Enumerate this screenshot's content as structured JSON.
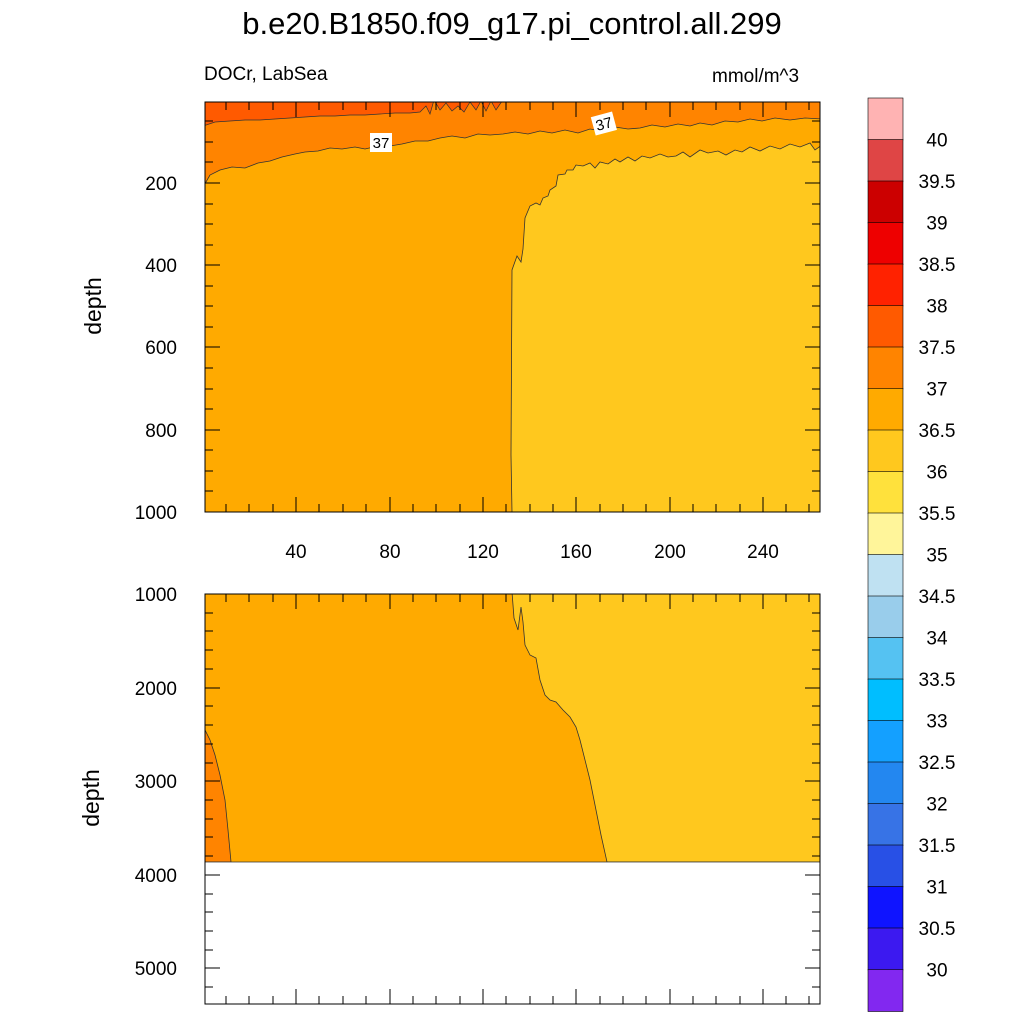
{
  "title": "b.e20.B1850.f09_g17.pi_control.all.299",
  "subtitle_left": "DOCr, LabSea",
  "units": "mmol/m^3",
  "chart_data": [
    {
      "type": "contour",
      "panel": "upper",
      "ylabel": "depth",
      "xlim": [
        2,
        262
      ],
      "ylim": [
        1000,
        0
      ],
      "x_ticks": [
        "40",
        "80",
        "120",
        "160",
        "200",
        "240"
      ],
      "y_ticks": [
        "200",
        "400",
        "600",
        "800",
        "1000"
      ],
      "contour_labels": [
        {
          "text": "37",
          "x": 75,
          "y": 100
        },
        {
          "text": "37",
          "x": 170,
          "y": 55
        }
      ],
      "regions": [
        {
          "range": "36-36.5",
          "x_min": 132,
          "depth_top": 110
        },
        {
          "range": "36.5-37",
          "depth_top": 170
        },
        {
          "range": "37-37.5",
          "depth_top": 40
        },
        {
          "range": "37.5-38",
          "depth_top": 0
        }
      ]
    },
    {
      "type": "contour",
      "panel": "lower",
      "ylabel": "depth",
      "ylim": [
        5400,
        1000
      ],
      "y_ticks": [
        "1000",
        "2000",
        "3000",
        "4000",
        "5000"
      ],
      "data_floor_depth": 3850,
      "regions": [
        {
          "range": "37-37.5",
          "x_max": 12,
          "depth_top": 2450
        },
        {
          "range": "36.5-37"
        },
        {
          "range": "36-36.5",
          "x_min": 135
        }
      ]
    }
  ],
  "colorbar": {
    "labels": [
      "40",
      "39.5",
      "39",
      "38.5",
      "38",
      "37.5",
      "37",
      "36.5",
      "36",
      "35.5",
      "35",
      "34.5",
      "34",
      "33.5",
      "33",
      "32.5",
      "32",
      "31.5",
      "31",
      "30.5",
      "30"
    ],
    "colors": [
      "#FFB3B3",
      "#DF4545",
      "#CC0000",
      "#EE0000",
      "#FF2200",
      "#FF5A00",
      "#FF8400",
      "#FFAA00",
      "#FFC81E",
      "#FFE13C",
      "#FFF59A",
      "#BFE1F2",
      "#99CDEB",
      "#55C2F2",
      "#00BEFF",
      "#14A0FF",
      "#2387F0",
      "#3773E6",
      "#2850E6",
      "#0F14FF",
      "#3C19F0",
      "#8228F0"
    ]
  }
}
